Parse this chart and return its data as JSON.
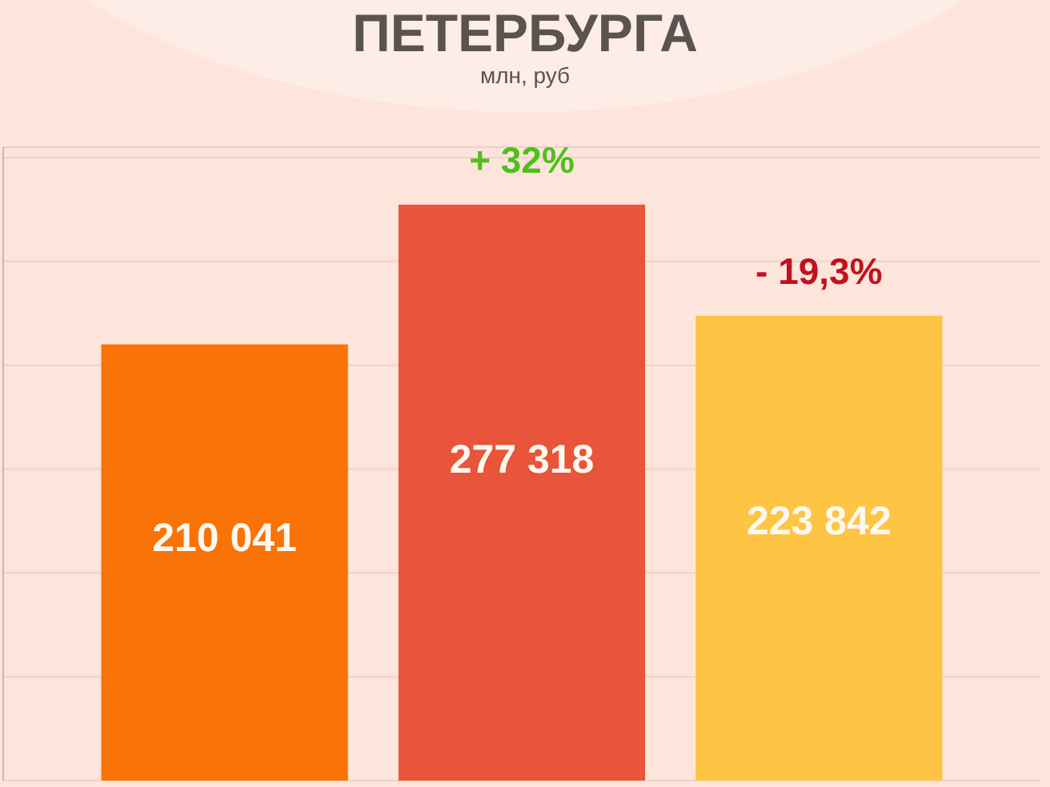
{
  "chart_data": {
    "type": "bar",
    "title": "ПЕТЕРБУРГА",
    "subtitle": "млн, руб",
    "categories": [
      null,
      null,
      null
    ],
    "values": [
      210041,
      277318,
      223842
    ],
    "colors": [
      "#f97306",
      "#e8553a",
      "#fdc543"
    ],
    "ylim": [
      0,
      305000
    ],
    "yticks": [
      {
        "value": 0,
        "label": null
      },
      {
        "value": 50000,
        "label": null
      },
      {
        "value": 100000,
        "label": null
      },
      {
        "value": 150000,
        "label": null
      },
      {
        "value": 200000,
        "label": null
      },
      {
        "value": 250000,
        "label": null
      },
      {
        "value": 300000,
        "label": null
      }
    ],
    "grid": "y",
    "data_labels": true,
    "annotations": [
      {
        "text": "+ 32%",
        "y": 277318
      },
      {
        "text": "- 19,3%",
        "y": 223842
      }
    ]
  }
}
